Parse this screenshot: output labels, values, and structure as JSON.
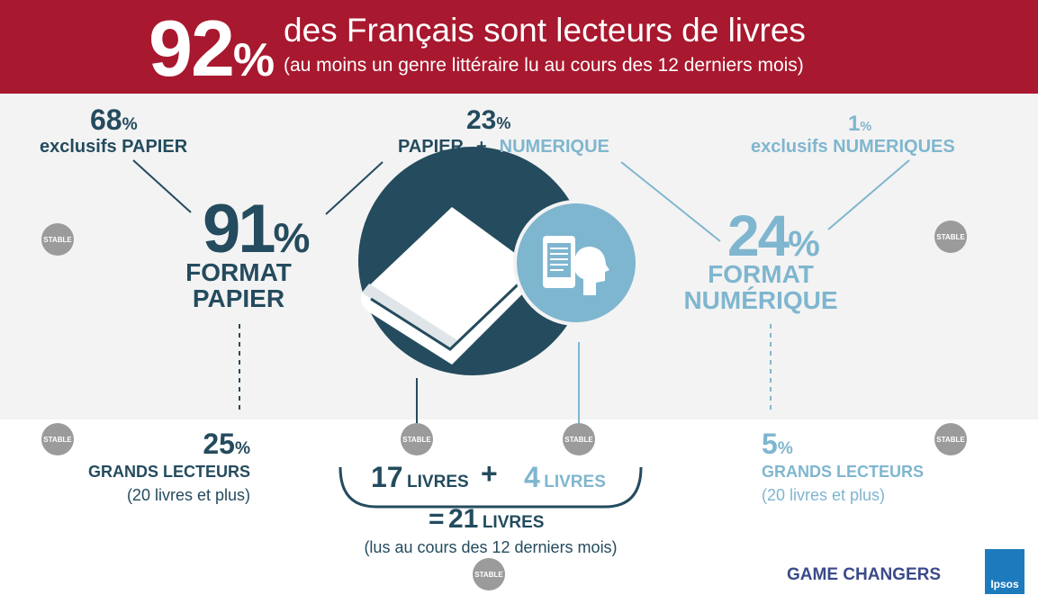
{
  "header": {
    "big_percent": "92",
    "percent_sign": "%",
    "title": "des Français sont lecteurs de livres",
    "subtitle": "(au moins un genre littéraire lu au cours des 12 derniers mois)"
  },
  "top": {
    "paper_only": {
      "value": "68",
      "sign": "%",
      "label": "exclusifs PAPIER"
    },
    "both": {
      "value": "23",
      "sign": "%",
      "label_paper": "PAPIER",
      "plus": "+",
      "label_digital": "NUMERIQUE"
    },
    "digital_only": {
      "value": "1",
      "sign": "%",
      "label": "exclusifs NUMERIQUES"
    }
  },
  "paper_format": {
    "value": "91",
    "sign": "%",
    "line1": "FORMAT",
    "line2": "PAPIER"
  },
  "digital_format": {
    "value": "24",
    "sign": "%",
    "line1": "FORMAT",
    "line2": "NUMÉRIQUE"
  },
  "stable_label": "STABLE",
  "bottom": {
    "paper_big_readers": {
      "value": "25",
      "sign": "%",
      "label": "GRANDS LECTEURS",
      "sub": "(20 livres et plus)"
    },
    "digital_big_readers": {
      "value": "5",
      "sign": "%",
      "label": "GRANDS LECTEURS",
      "sub": "(20 livres et plus)"
    },
    "books_paper": {
      "num": "17",
      "unit": "LIVRES"
    },
    "plus": "+",
    "books_digital": {
      "num": "4",
      "unit": "LIVRES"
    },
    "total": {
      "eq": "=",
      "num": "21",
      "unit": "LIVRES"
    },
    "total_sub": "(lus au cours des 12 derniers mois)"
  },
  "footer": {
    "game_changers": "GAME CHANGERS",
    "logo": "Ipsos"
  },
  "colors": {
    "header_red": "#a8182e",
    "dark_blue": "#244b5e",
    "light_blue": "#7fb6cf",
    "stable_gray": "#9b9b9b"
  }
}
